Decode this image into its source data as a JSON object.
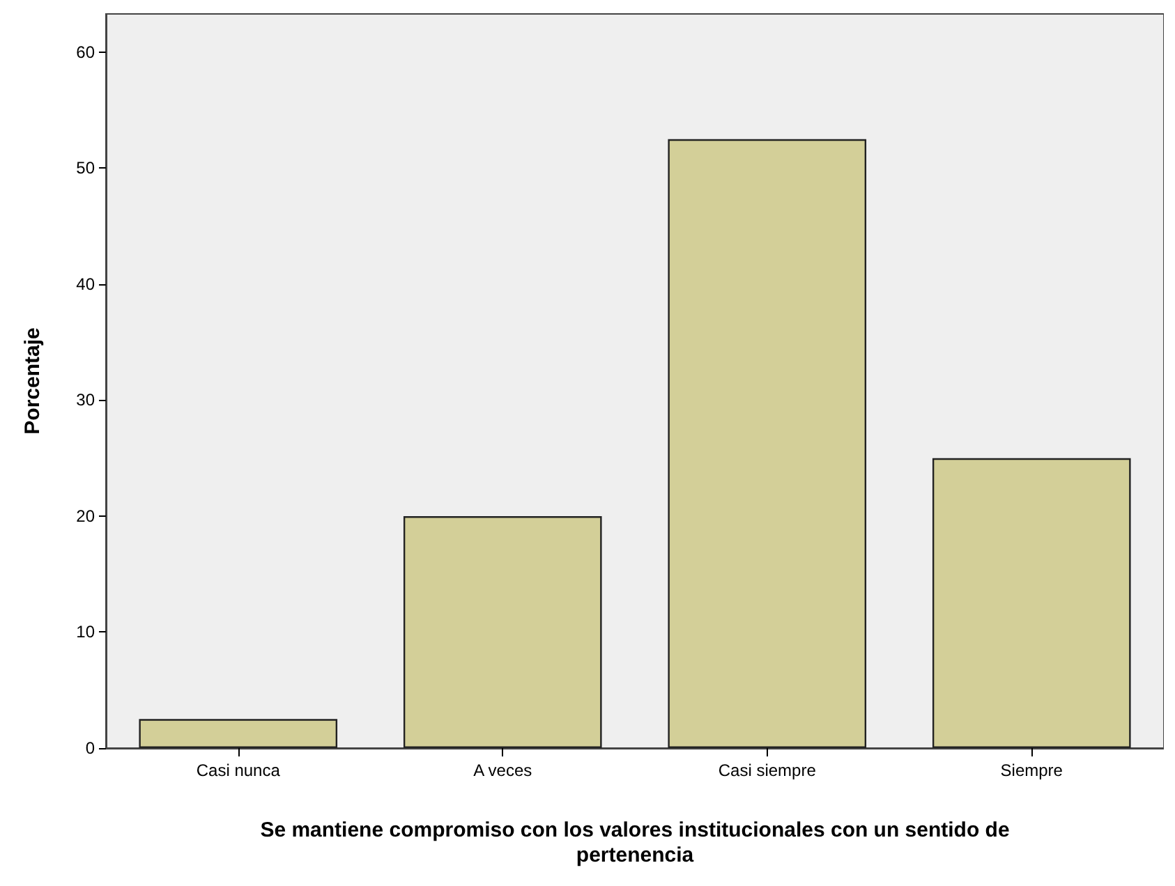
{
  "chart_data": {
    "type": "bar",
    "xlabel": "Se mantiene compromiso con los valores institucionales con un sentido de\npertenencia",
    "ylabel": "Porcentaje",
    "categories": [
      "Casi nunca",
      "A veces",
      "Casi siempre",
      "Siempre"
    ],
    "values": [
      2.5,
      20,
      52.5,
      25
    ],
    "color": "#d3cf98",
    "ylim": [
      0,
      63.3
    ],
    "yticks": [
      0,
      10,
      20,
      30,
      40,
      50,
      60
    ],
    "grid": false
  }
}
